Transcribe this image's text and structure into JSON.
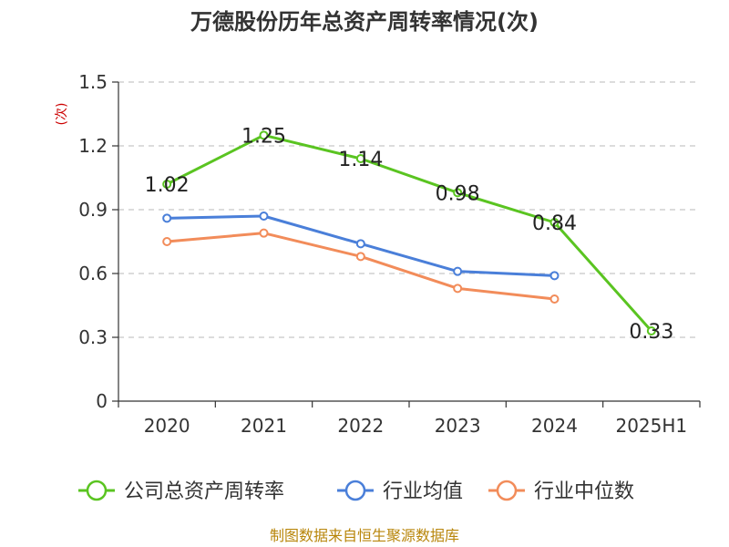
{
  "chart_data": {
    "type": "line",
    "title": "万德股份历年总资产周转率情况(次)",
    "ylabel": "(次)",
    "xlabel": "",
    "categories": [
      "2020",
      "2021",
      "2022",
      "2023",
      "2024",
      "2025H1"
    ],
    "ylim": [
      0,
      1.5
    ],
    "yticks": [
      "0",
      "0.3",
      "0.6",
      "0.9",
      "1.2",
      "1.5"
    ],
    "grid": true,
    "legend_position": "bottom",
    "series": [
      {
        "name": "公司总资产周转率",
        "color": "#5ac421",
        "values": [
          1.02,
          1.25,
          1.14,
          0.98,
          0.84,
          0.33
        ],
        "labels": [
          "1.02",
          "1.25",
          "1.14",
          "0.98",
          "0.84",
          "0.33"
        ]
      },
      {
        "name": "行业均值",
        "color": "#4a7fd9",
        "values": [
          0.86,
          0.87,
          0.74,
          0.61,
          0.59,
          null
        ]
      },
      {
        "name": "行业中位数",
        "color": "#f28c5a",
        "values": [
          0.75,
          0.79,
          0.68,
          0.53,
          0.48,
          null
        ]
      }
    ],
    "source": "制图数据来自恒生聚源数据库"
  }
}
